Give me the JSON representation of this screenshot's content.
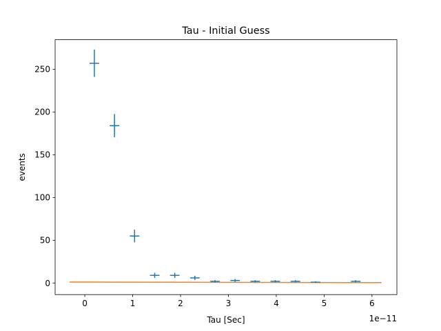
{
  "chart_data": {
    "type": "scatter",
    "title": "Tau - Initial Guess",
    "xlabel": "Tau [Sec]",
    "ylabel": "events",
    "x_offset_label": "1e−11",
    "x_scale_exponent": -11,
    "xlim": [
      -0.62,
      6.52
    ],
    "ylim": [
      -13.5,
      284.5
    ],
    "x_ticks": [
      0,
      1,
      2,
      3,
      4,
      5,
      6
    ],
    "x_tick_labels": [
      "0",
      "1",
      "2",
      "3",
      "4",
      "5",
      "6"
    ],
    "y_ticks": [
      0,
      50,
      100,
      150,
      200,
      250
    ],
    "y_tick_labels": [
      "0",
      "50",
      "100",
      "150",
      "200",
      "250"
    ],
    "grid": false,
    "legend": "none",
    "series": [
      {
        "kind": "errorbar",
        "color": "#1f77b4",
        "points": [
          {
            "x": 0.2,
            "y": 257,
            "xerr": 0.1,
            "yerr": 16
          },
          {
            "x": 0.62,
            "y": 184,
            "xerr": 0.1,
            "yerr": 13.6
          },
          {
            "x": 1.04,
            "y": 55,
            "xerr": 0.1,
            "yerr": 7.4
          },
          {
            "x": 1.46,
            "y": 9,
            "xerr": 0.1,
            "yerr": 3
          },
          {
            "x": 1.88,
            "y": 9,
            "xerr": 0.1,
            "yerr": 3
          },
          {
            "x": 2.3,
            "y": 6,
            "xerr": 0.1,
            "yerr": 2.4
          },
          {
            "x": 2.72,
            "y": 2,
            "xerr": 0.1,
            "yerr": 1.4
          },
          {
            "x": 3.14,
            "y": 3,
            "xerr": 0.1,
            "yerr": 1.7
          },
          {
            "x": 3.56,
            "y": 2,
            "xerr": 0.1,
            "yerr": 1.4
          },
          {
            "x": 3.98,
            "y": 2,
            "xerr": 0.1,
            "yerr": 1.4
          },
          {
            "x": 4.4,
            "y": 2,
            "xerr": 0.1,
            "yerr": 1.4
          },
          {
            "x": 4.82,
            "y": 1,
            "xerr": 0.1,
            "yerr": 1
          },
          {
            "x": 5.66,
            "y": 2,
            "xerr": 0.1,
            "yerr": 1.4
          }
        ]
      },
      {
        "kind": "line",
        "color": "#ff7f0e",
        "x": [
          -0.32,
          0.5,
          1.5,
          2.5,
          3.5,
          4.5,
          5.5,
          6.2
        ],
        "y": [
          1.2,
          1.1,
          1.0,
          0.9,
          0.8,
          0.7,
          0.6,
          0.55
        ]
      }
    ]
  }
}
